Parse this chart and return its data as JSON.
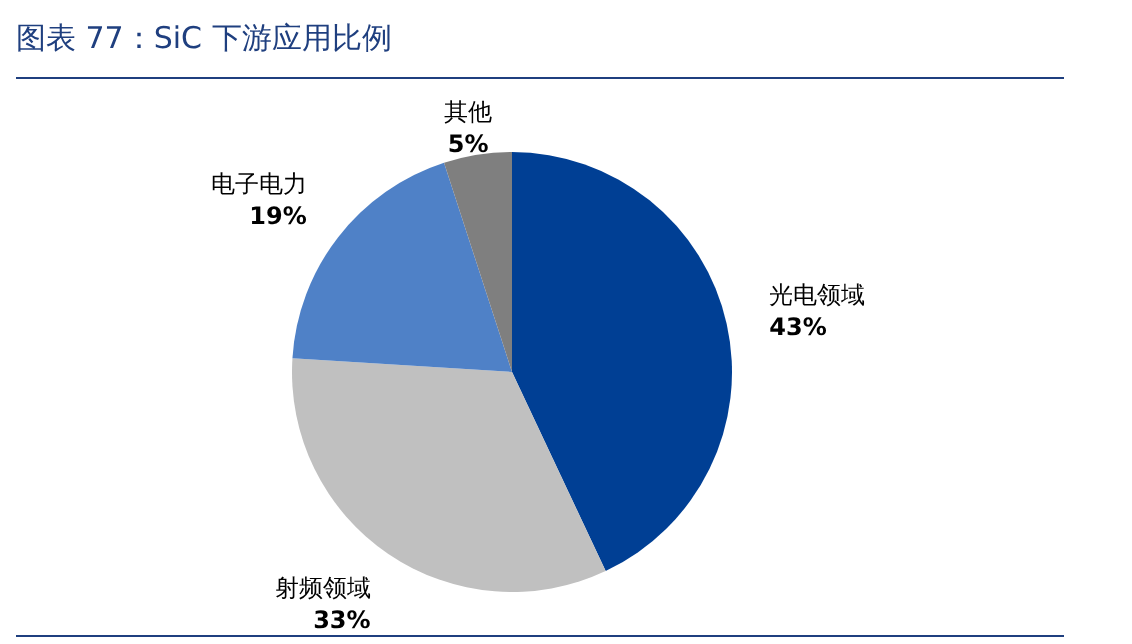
{
  "chart_data": {
    "type": "pie",
    "title": "图表 77：SiC 下游应用比例",
    "categories": [
      "光电领域",
      "射频领域",
      "电子电力",
      "其他"
    ],
    "values": [
      43,
      33,
      19,
      5
    ],
    "value_labels": [
      "43%",
      "33%",
      "19%",
      "5%"
    ],
    "colors": [
      "#003f94",
      "#c0c0c0",
      "#4f81c7",
      "#7f7f7f"
    ]
  }
}
